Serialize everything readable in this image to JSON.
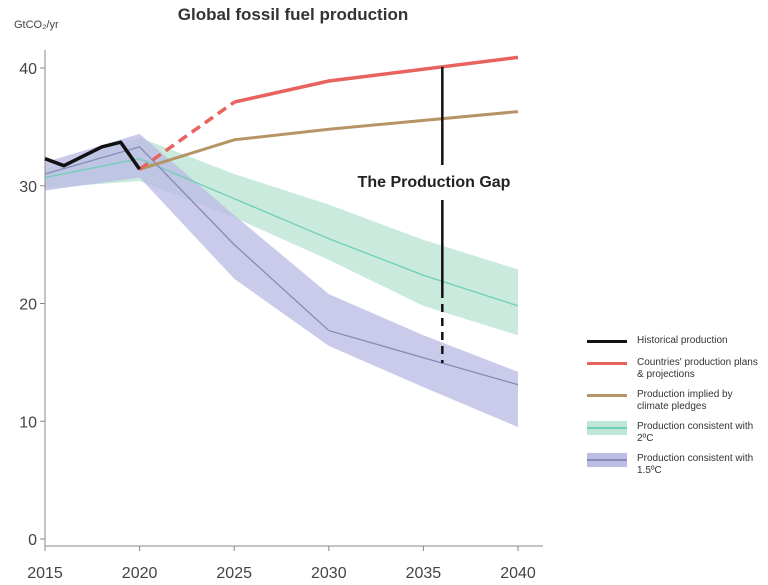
{
  "chart_data": {
    "type": "line",
    "title": "Global fossil fuel production",
    "ylabel": "GtCO₂/yr",
    "xlabel": "",
    "xlim": [
      2015,
      2040
    ],
    "ylim": [
      0,
      42
    ],
    "xticks": [
      2015,
      2020,
      2025,
      2030,
      2035,
      2040
    ],
    "yticks": [
      0,
      10,
      20,
      30,
      40
    ],
    "grid": false,
    "legend_position": "right",
    "annotation": "The Production Gap",
    "gap_year": 2036,
    "series": [
      {
        "name": "Historical production",
        "color": "#111111",
        "x": [
          2015,
          2016,
          2017,
          2018,
          2019,
          2020
        ],
        "y": [
          32.3,
          31.7,
          32.5,
          33.3,
          33.7,
          31.4
        ]
      },
      {
        "name": "Countries' production plans & projections",
        "color": "#e8625e",
        "x": [
          2020,
          2025,
          2030,
          2040
        ],
        "y": [
          31.4,
          37.1,
          38.9,
          40.9
        ],
        "dashed_until": 2025
      },
      {
        "name": "Production implied by climate pledges",
        "color": "#b59565",
        "x": [
          2020,
          2025,
          2030,
          2040
        ],
        "y": [
          31.4,
          33.9,
          34.8,
          36.3
        ]
      },
      {
        "name": "Production consistent with 2ºC",
        "color": "#6dcfb5",
        "band_color": "#bfe6d6",
        "x": [
          2015,
          2020,
          2025,
          2030,
          2035,
          2040
        ],
        "y": [
          30.7,
          32.3,
          28.9,
          25.5,
          22.4,
          19.8
        ],
        "upper": [
          31.4,
          34.1,
          31.0,
          28.4,
          25.4,
          22.9
        ],
        "lower": [
          29.8,
          30.4,
          27.3,
          23.7,
          19.8,
          17.3
        ]
      },
      {
        "name": "Production consistent with 1.5ºC",
        "color": "#8a8ab8",
        "band_color": "#bdbde6",
        "x": [
          2015,
          2020,
          2025,
          2030,
          2035,
          2040
        ],
        "y": [
          31.0,
          33.3,
          25.0,
          17.7,
          15.4,
          13.1
        ],
        "upper": [
          32.0,
          34.4,
          27.5,
          20.8,
          17.3,
          14.2
        ],
        "lower": [
          29.6,
          30.7,
          22.1,
          16.4,
          12.9,
          9.5
        ]
      }
    ]
  }
}
